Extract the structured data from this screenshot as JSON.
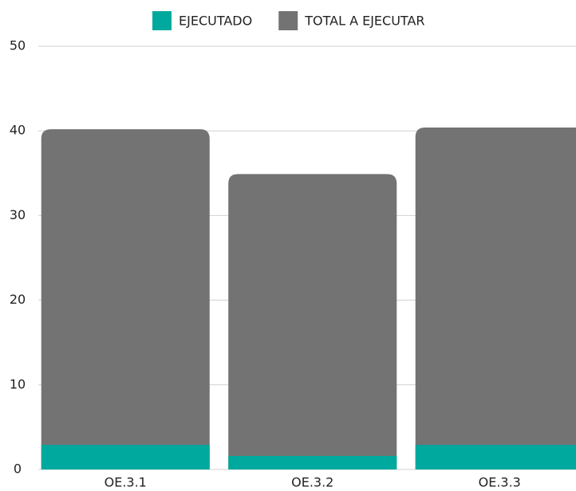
{
  "chart_data": {
    "type": "bar",
    "overlap": true,
    "categories": [
      "OE.3.1",
      "OE.3.2",
      "OE.3.3"
    ],
    "series": [
      {
        "name": "EJECUTADO",
        "color": "#00a99d",
        "values": [
          2.9,
          1.6,
          2.9
        ]
      },
      {
        "name": "TOTAL A EJECUTAR",
        "color": "#737373",
        "values": [
          40.2,
          34.9,
          40.4
        ]
      }
    ],
    "ylim": [
      0,
      50
    ],
    "yticks": [
      0,
      10,
      20,
      30,
      40,
      50
    ],
    "grid": true,
    "legend": "top"
  }
}
